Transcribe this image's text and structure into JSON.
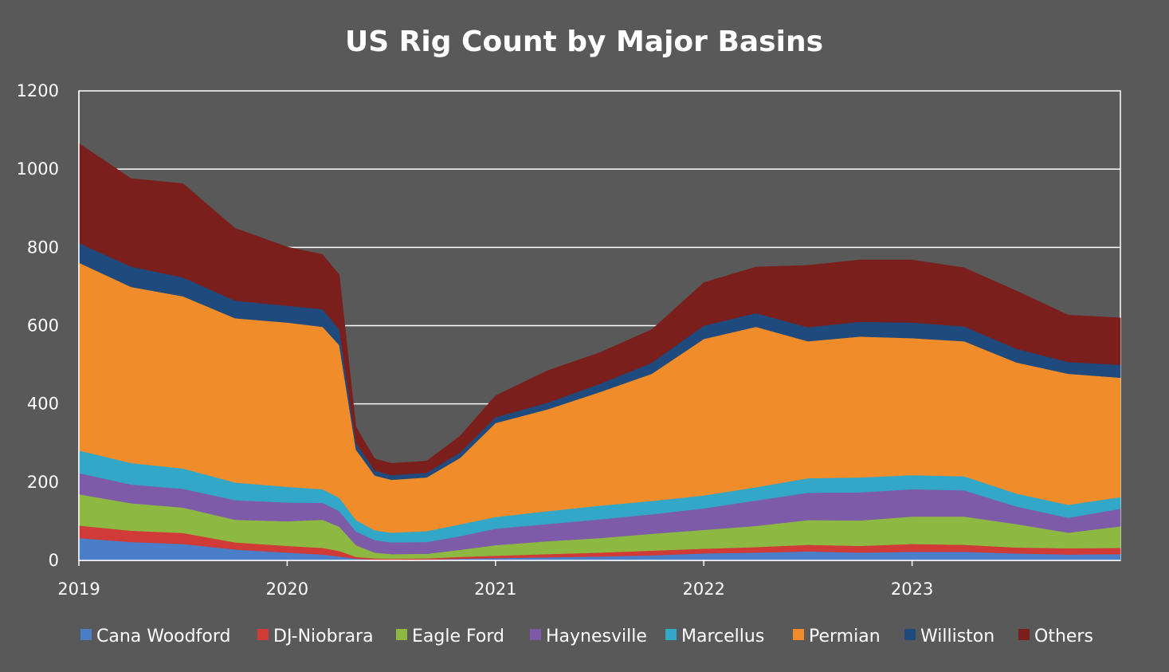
{
  "chart_data": {
    "type": "area",
    "stacked": true,
    "title": "US Rig Count by Major Basins",
    "xlabel": "",
    "ylabel": "",
    "ylim": [
      0,
      1200
    ],
    "xlim": [
      2019.0,
      2024.0
    ],
    "yticks": [
      0,
      200,
      400,
      600,
      800,
      1000,
      1200
    ],
    "x_tick_values": [
      2019,
      2020,
      2021,
      2022,
      2023
    ],
    "x_tick_labels": [
      "2019",
      "2020",
      "2021",
      "2022",
      "2023"
    ],
    "grid": "horizontal",
    "legend_position": "bottom",
    "x": [
      2019.0,
      2019.25,
      2019.5,
      2019.75,
      2020.0,
      2020.17,
      2020.25,
      2020.33,
      2020.42,
      2020.5,
      2020.67,
      2020.83,
      2021.0,
      2021.25,
      2021.5,
      2021.75,
      2022.0,
      2022.25,
      2022.5,
      2022.75,
      2023.0,
      2023.25,
      2023.5,
      2023.75,
      2024.0
    ],
    "series": [
      {
        "name": "Cana Woodford",
        "color": "#4a7ec9",
        "values": [
          57,
          47,
          42,
          28,
          20,
          15,
          10,
          4,
          2,
          1,
          2,
          4,
          6,
          8,
          10,
          13,
          18,
          20,
          23,
          20,
          22,
          22,
          18,
          15,
          16
        ]
      },
      {
        "name": "DJ-Niobrara",
        "color": "#d03a37",
        "values": [
          32,
          29,
          28,
          18,
          17,
          17,
          14,
          5,
          3,
          3,
          3,
          5,
          6,
          8,
          10,
          12,
          12,
          14,
          17,
          17,
          20,
          18,
          15,
          16,
          16
        ]
      },
      {
        "name": "Eagle Ford",
        "color": "#8db943",
        "values": [
          80,
          70,
          65,
          58,
          63,
          72,
          62,
          30,
          15,
          12,
          12,
          18,
          27,
          33,
          37,
          43,
          48,
          54,
          63,
          65,
          70,
          72,
          60,
          40,
          55
        ]
      },
      {
        "name": "Haynesville",
        "color": "#7e5ba8",
        "values": [
          54,
          48,
          48,
          50,
          48,
          43,
          40,
          35,
          32,
          30,
          30,
          35,
          42,
          44,
          48,
          50,
          55,
          65,
          70,
          72,
          70,
          67,
          45,
          38,
          45
        ]
      },
      {
        "name": "Marcellus",
        "color": "#33a7c8",
        "values": [
          58,
          55,
          52,
          45,
          40,
          35,
          34,
          29,
          25,
          25,
          28,
          30,
          30,
          33,
          35,
          34,
          33,
          34,
          37,
          38,
          36,
          36,
          33,
          33,
          30
        ]
      },
      {
        "name": "Permian",
        "color": "#f08d2a",
        "values": [
          480,
          450,
          440,
          420,
          420,
          415,
          390,
          180,
          140,
          135,
          137,
          170,
          240,
          260,
          290,
          325,
          400,
          410,
          350,
          360,
          350,
          345,
          335,
          335,
          305
        ]
      },
      {
        "name": "Williston",
        "color": "#1f4a7d",
        "values": [
          50,
          52,
          48,
          45,
          43,
          45,
          40,
          18,
          13,
          12,
          12,
          14,
          15,
          17,
          21,
          28,
          34,
          35,
          36,
          38,
          40,
          38,
          35,
          30,
          33
        ]
      },
      {
        "name": "Others",
        "color": "#7b1f1d",
        "values": [
          255,
          225,
          240,
          185,
          150,
          140,
          140,
          40,
          30,
          30,
          30,
          42,
          55,
          82,
          80,
          85,
          110,
          118,
          158,
          158,
          160,
          150,
          148,
          120,
          120
        ]
      }
    ]
  }
}
